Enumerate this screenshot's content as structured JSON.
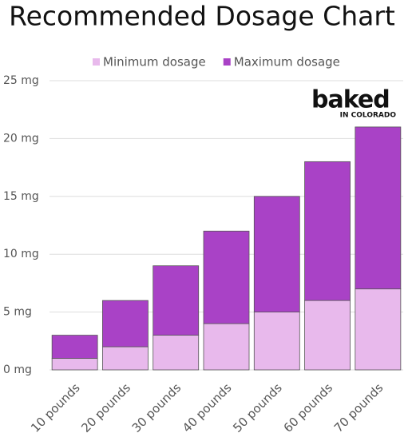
{
  "chart_data": {
    "type": "stacked_bar",
    "title": "Recommended Dosage Chart",
    "categories": [
      "10 pounds",
      "20 pounds",
      "30 pounds",
      "40 pounds",
      "50 pounds",
      "60 pounds",
      "70 pounds"
    ],
    "series": [
      {
        "name": "Minimum dosage",
        "color": "#e8b9ec",
        "values": [
          1,
          2,
          3,
          4,
          5,
          6,
          7
        ]
      },
      {
        "name": "Maximum dosage",
        "color": "#a942c6",
        "values": [
          2,
          4,
          6,
          8,
          10,
          12,
          14
        ]
      }
    ],
    "ylim": [
      0,
      25
    ],
    "yticks": [
      {
        "value": 0,
        "label": "0 mg"
      },
      {
        "value": 5,
        "label": "5 mg"
      },
      {
        "value": 10,
        "label": "10 mg"
      },
      {
        "value": 15,
        "label": "15 mg"
      },
      {
        "value": 20,
        "label": "20 mg"
      },
      {
        "value": 25,
        "label": "25 mg"
      }
    ],
    "grid": true,
    "legend": "top",
    "logo": {
      "name": "baked",
      "tagline": "IN COLORADO"
    }
  }
}
